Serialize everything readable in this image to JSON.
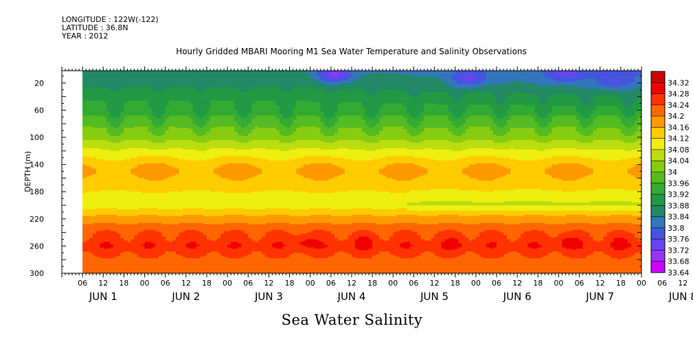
{
  "header": {
    "longitude": "LONGITUDE : 122W(-122)",
    "latitude": "LATITUDE : 36.8N",
    "year": "YEAR : 2012"
  },
  "title": "Hourly Gridded MBARI Mooring M1 Sea Water Temperature and Salinity Observations",
  "footer_label": "Sea Water Salinity",
  "chart_data": {
    "type": "heatmap",
    "title": "Hourly Gridded MBARI Mooring M1 Sea Water Temperature and Salinity Observations",
    "variable": "Sea Water Salinity",
    "ylabel": "DEPTH (m)",
    "y_reversed": true,
    "ylim": [
      300,
      2
    ],
    "y_ticks": [
      20,
      60,
      100,
      140,
      180,
      220,
      260,
      300
    ],
    "xlim_hours": [
      0,
      168
    ],
    "x_hour_labels": [
      "06",
      "12",
      "18",
      "00",
      "06",
      "12",
      "18",
      "00",
      "06",
      "12",
      "18",
      "00",
      "06",
      "12",
      "18",
      "00",
      "06",
      "12",
      "18",
      "00",
      "06",
      "12",
      "18",
      "00",
      "06",
      "12",
      "18",
      "00",
      "06",
      "12",
      "18",
      "00"
    ],
    "x_day_labels": [
      "JUN 1",
      "JUN 2",
      "JUN 3",
      "JUN 4",
      "JUN 5",
      "JUN 6",
      "JUN 7",
      "JUN 8"
    ],
    "data_start": "JUN 1 12:00",
    "colorbar_levels": [
      33.64,
      33.68,
      33.72,
      33.76,
      33.8,
      33.84,
      33.88,
      33.92,
      33.96,
      34,
      34.04,
      34.08,
      34.12,
      34.16,
      34.2,
      34.24,
      34.28,
      34.32
    ],
    "colorbar_colors": [
      "#cc00ff",
      "#9933ff",
      "#6644ee",
      "#4455dd",
      "#3377bb",
      "#228866",
      "#229944",
      "#33aa33",
      "#55bb22",
      "#88cc11",
      "#bbdd11",
      "#eeee11",
      "#ffcc00",
      "#ff9900",
      "#ff6600",
      "#ff3300",
      "#ee0000",
      "#cc0000"
    ],
    "depth_profile": [
      {
        "depth": 2,
        "value": 33.85
      },
      {
        "depth": 20,
        "value": 33.87
      },
      {
        "depth": 40,
        "value": 33.91
      },
      {
        "depth": 60,
        "value": 33.94
      },
      {
        "depth": 80,
        "value": 33.99
      },
      {
        "depth": 100,
        "value": 34.03
      },
      {
        "depth": 120,
        "value": 34.09
      },
      {
        "depth": 140,
        "value": 34.15
      },
      {
        "depth": 150,
        "value": 34.17
      },
      {
        "depth": 160,
        "value": 34.15
      },
      {
        "depth": 180,
        "value": 34.12
      },
      {
        "depth": 200,
        "value": 34.1
      },
      {
        "depth": 220,
        "value": 34.18
      },
      {
        "depth": 240,
        "value": 34.24
      },
      {
        "depth": 260,
        "value": 34.27
      },
      {
        "depth": 280,
        "value": 34.23
      },
      {
        "depth": 300,
        "value": 34.2
      }
    ],
    "low_salinity_patches": [
      {
        "hour": 79,
        "depth": 8,
        "value": 33.72
      },
      {
        "hour": 118,
        "depth": 14,
        "value": 33.77
      },
      {
        "hour": 146,
        "depth": 8,
        "value": 33.78
      },
      {
        "hour": 160,
        "depth": 18,
        "value": 33.8
      }
    ],
    "high_salinity_cores": [
      {
        "hour": 70,
        "depth": 254,
        "value": 34.3
      },
      {
        "hour": 88,
        "depth": 254,
        "value": 34.29
      },
      {
        "hour": 114,
        "depth": 256,
        "value": 34.29
      },
      {
        "hour": 146,
        "depth": 254,
        "value": 34.3
      },
      {
        "hour": 162,
        "depth": 256,
        "value": 34.29
      }
    ]
  }
}
